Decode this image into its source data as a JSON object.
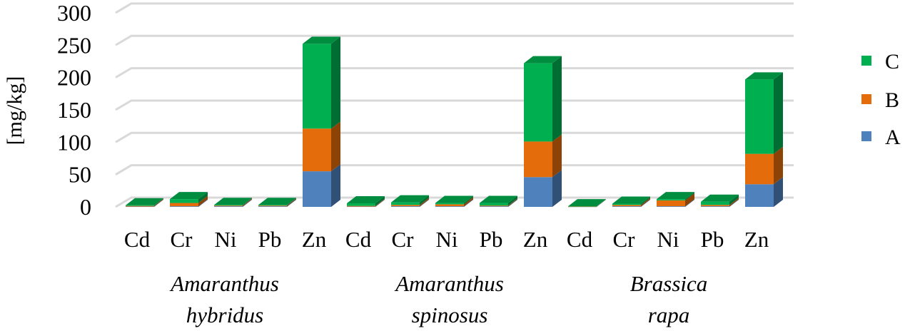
{
  "chart_data": {
    "type": "bar",
    "stacked": true,
    "style": "3d",
    "ylabel": "[mg/kg]",
    "ylim": [
      0,
      300
    ],
    "yticks": [
      0,
      50,
      100,
      150,
      200,
      250,
      300
    ],
    "grid": true,
    "legend_position": "right",
    "groups": [
      {
        "line1": "Amaranthus",
        "line2": "hybridus"
      },
      {
        "line1": "Amaranthus",
        "line2": "spinosus"
      },
      {
        "line1": "Brassica",
        "line2": "rapa"
      }
    ],
    "categories": [
      "Cd",
      "Cr",
      "Ni",
      "Pb",
      "Zn",
      "Cd",
      "Cr",
      "Ni",
      "Pb",
      "Zn",
      "Cd",
      "Cr",
      "Ni",
      "Pb",
      "Zn"
    ],
    "series": [
      {
        "name": "A",
        "color": "#4f81bd",
        "values": [
          0.5,
          1,
          1,
          1,
          55,
          0.5,
          1,
          1,
          1,
          46,
          0.3,
          1,
          1,
          1,
          35
        ]
      },
      {
        "name": "B",
        "color": "#e46c0a",
        "values": [
          1,
          5,
          1,
          1,
          66,
          1,
          2,
          3,
          1,
          55,
          0.2,
          2,
          9,
          2,
          47
        ]
      },
      {
        "name": "C",
        "color": "#00b050",
        "values": [
          1,
          6,
          1,
          1,
          131,
          4,
          4,
          2,
          4,
          121,
          0.5,
          2,
          2,
          5,
          115
        ]
      }
    ]
  }
}
